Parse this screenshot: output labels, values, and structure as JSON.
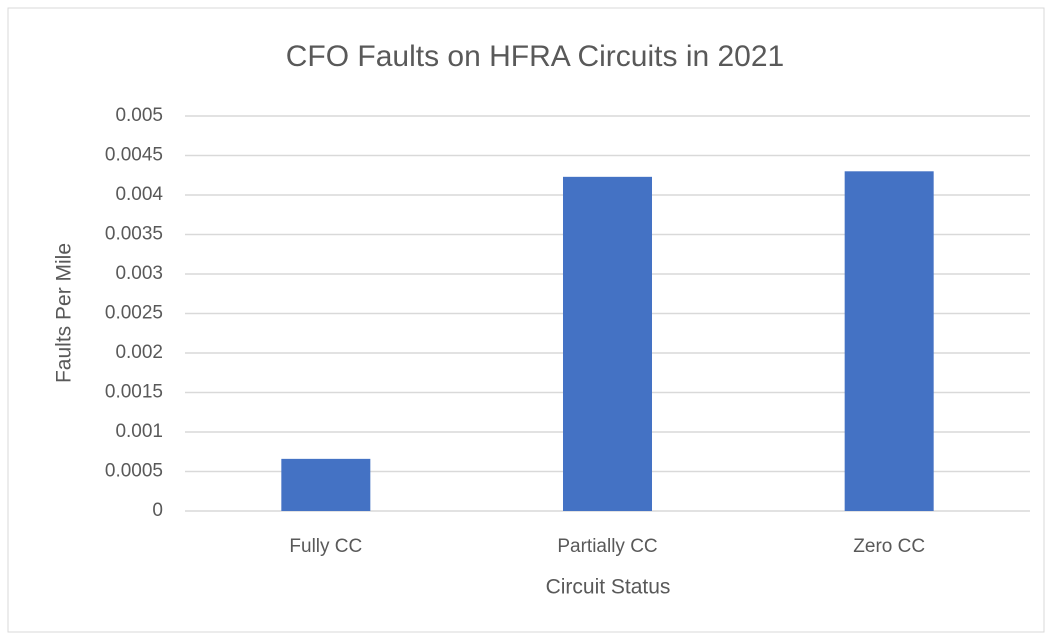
{
  "chart_data": {
    "type": "bar",
    "title": "CFO Faults on HFRA Circuits in 2021",
    "x_label": "Circuit Status",
    "y_label": "Faults Per Mile",
    "categories": [
      "Fully CC",
      "Partially CC",
      "Zero CC"
    ],
    "values": [
      0.00066,
      0.00423,
      0.0043
    ],
    "color": "#4472c4",
    "ylim": [
      0,
      0.005
    ],
    "yticks": [
      0,
      0.0005,
      0.001,
      0.0015,
      0.002,
      0.0025,
      0.003,
      0.0035,
      0.004,
      0.0045,
      0.005
    ],
    "grid": true
  }
}
